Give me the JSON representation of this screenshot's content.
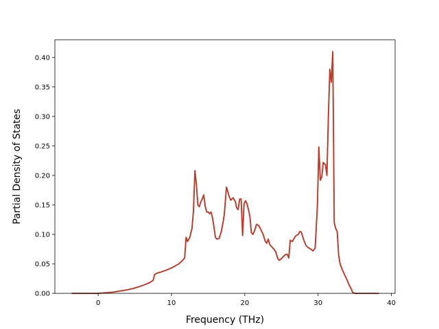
{
  "chart_data": {
    "type": "line",
    "title": "",
    "xlabel": "Frequency (THz)",
    "ylabel": "Partial Density of States",
    "xlim": [
      -5.9,
      40.5
    ],
    "ylim": [
      0,
      0.43
    ],
    "xticks": [
      0,
      10,
      20,
      30,
      40
    ],
    "xtick_labels": [
      "0",
      "10",
      "20",
      "30",
      "40"
    ],
    "yticks": [
      0,
      0.05,
      0.1,
      0.15,
      0.2,
      0.25,
      0.3,
      0.35,
      0.4
    ],
    "ytick_labels": [
      "0.00",
      "0.05",
      "0.10",
      "0.15",
      "0.20",
      "0.25",
      "0.30",
      "0.35",
      "0.40"
    ],
    "grid": false,
    "colors": {
      "line": "#c0392b",
      "line_under": "#2e7d32",
      "axes": "#000000"
    },
    "series": [
      {
        "x": [
          -3.6,
          -1,
          0,
          1,
          2,
          3,
          4,
          5,
          6,
          7,
          7.5,
          7.7,
          8,
          9,
          10,
          11,
          11.6,
          11.8,
          12.0,
          12.2,
          12.5,
          12.8,
          13.0,
          13.2,
          13.4,
          13.6,
          13.8,
          14.0,
          14.2,
          14.4,
          14.6,
          14.8,
          15.0,
          15.2,
          15.4,
          15.6,
          15.8,
          16.0,
          16.2,
          16.5,
          16.8,
          17.0,
          17.2,
          17.5,
          17.7,
          17.9,
          18.1,
          18.4,
          18.7,
          18.9,
          19.1,
          19.3,
          19.5,
          19.7,
          19.9,
          20.1,
          20.3,
          20.5,
          20.7,
          20.9,
          21.1,
          21.3,
          21.6,
          21.9,
          22.2,
          22.5,
          22.8,
          23.0,
          23.2,
          23.4,
          23.6,
          23.9,
          24.2,
          24.5,
          24.7,
          25.0,
          25.3,
          25.6,
          25.8,
          26.0,
          26.2,
          26.5,
          26.8,
          27.0,
          27.3,
          27.5,
          27.7,
          28.0,
          28.3,
          28.6,
          29.0,
          29.3,
          29.6,
          29.9,
          30.1,
          30.3,
          30.5,
          30.7,
          31.0,
          31.2,
          31.4,
          31.6,
          31.8,
          32.0,
          32.2,
          32.4,
          32.6,
          32.8,
          33.0,
          33.3,
          33.6,
          33.9,
          34.2,
          34.5,
          34.7,
          35.0,
          36,
          37,
          38.3
        ],
        "y": [
          0,
          0,
          0,
          0.001,
          0.002,
          0.004,
          0.006,
          0.009,
          0.013,
          0.018,
          0.022,
          0.032,
          0.034,
          0.038,
          0.043,
          0.05,
          0.057,
          0.06,
          0.095,
          0.088,
          0.095,
          0.11,
          0.14,
          0.208,
          0.185,
          0.15,
          0.147,
          0.155,
          0.16,
          0.167,
          0.148,
          0.138,
          0.138,
          0.135,
          0.138,
          0.128,
          0.112,
          0.095,
          0.092,
          0.093,
          0.105,
          0.118,
          0.133,
          0.18,
          0.172,
          0.163,
          0.158,
          0.162,
          0.156,
          0.145,
          0.142,
          0.16,
          0.16,
          0.098,
          0.152,
          0.157,
          0.152,
          0.142,
          0.13,
          0.103,
          0.1,
          0.105,
          0.117,
          0.115,
          0.108,
          0.1,
          0.088,
          0.085,
          0.092,
          0.083,
          0.08,
          0.076,
          0.071,
          0.059,
          0.056,
          0.059,
          0.063,
          0.066,
          0.066,
          0.06,
          0.09,
          0.088,
          0.095,
          0.098,
          0.1,
          0.105,
          0.104,
          0.092,
          0.082,
          0.078,
          0.075,
          0.072,
          0.077,
          0.148,
          0.248,
          0.192,
          0.197,
          0.222,
          0.218,
          0.2,
          0.3,
          0.38,
          0.358,
          0.41,
          0.12,
          0.11,
          0.105,
          0.065,
          0.05,
          0.04,
          0.032,
          0.024,
          0.015,
          0.008,
          0.002,
          0,
          0,
          0,
          0
        ]
      }
    ]
  }
}
